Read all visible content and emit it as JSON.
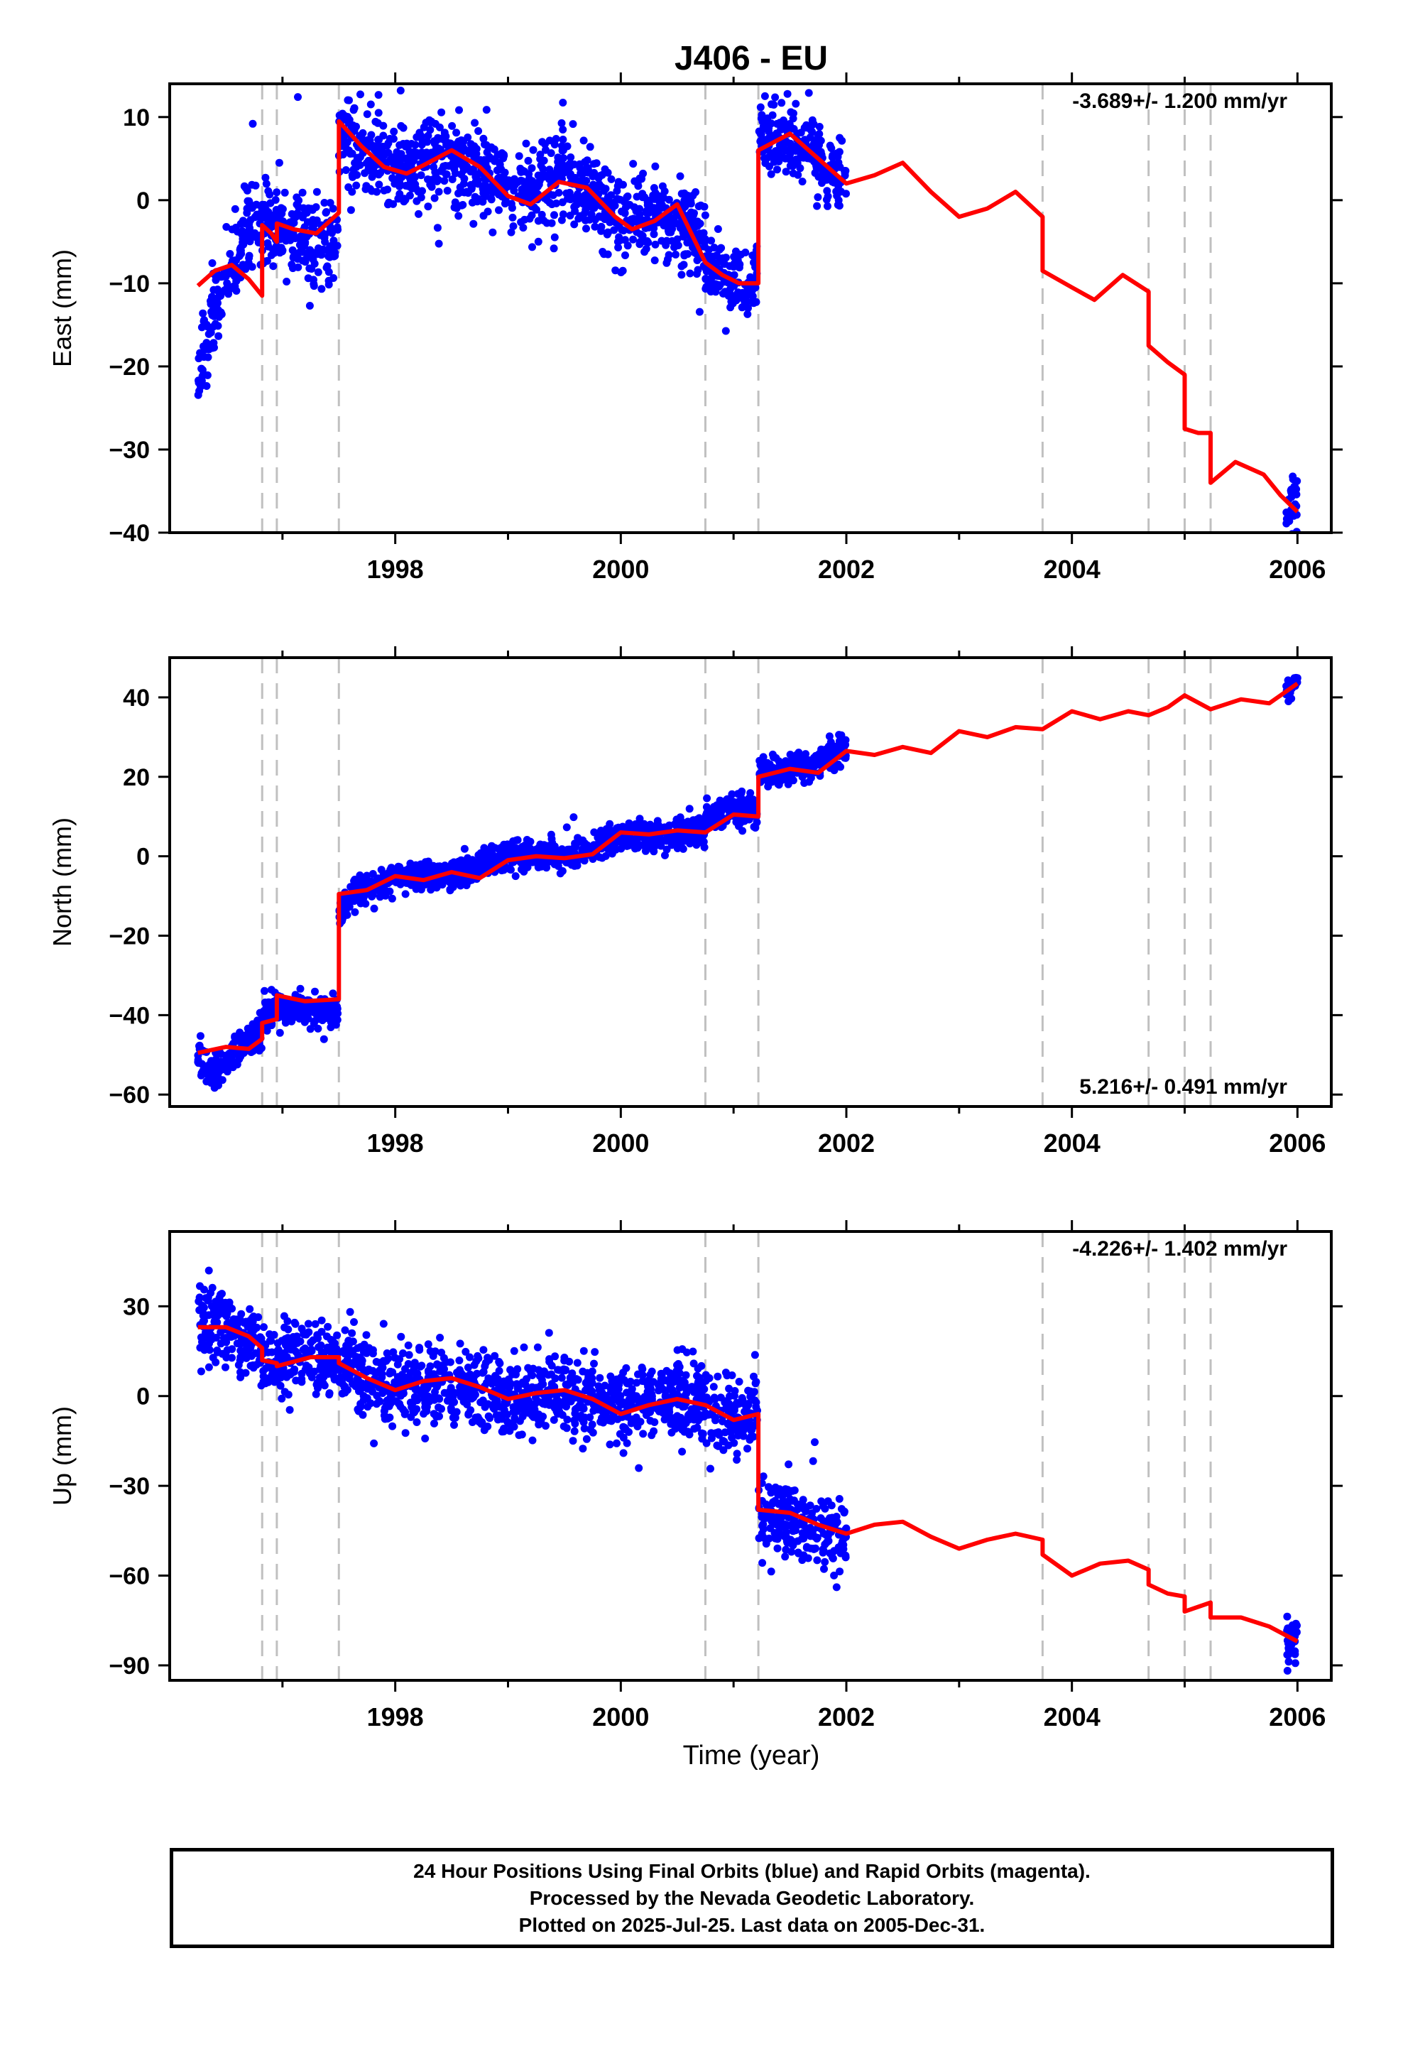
{
  "title": "J406 - EU",
  "xlabel": "Time (year)",
  "x_tick_labels": [
    "1998",
    "2000",
    "2002",
    "2004",
    "2006"
  ],
  "colors": {
    "final_orbits": "#0000ff",
    "model": "#ff0000",
    "steps": "#c0c0c0",
    "axes": "#000000"
  },
  "footer": {
    "line1": "24 Hour Positions Using Final Orbits (blue) and Rapid Orbits (magenta).",
    "line2": "Processed by the Nevada Geodetic Laboratory.",
    "line3": "Plotted on 2025-Jul-25. Last data on 2005-Dec-31."
  },
  "chart_data": [
    {
      "type": "scatter",
      "title": "J406 - EU",
      "xlabel": "",
      "ylabel": "East (mm)",
      "xlim": [
        1996.0,
        2006.3
      ],
      "ylim": [
        -40,
        14
      ],
      "xticks": [
        1998,
        2000,
        2002,
        2004,
        2006
      ],
      "yticks": [
        -40,
        -30,
        -20,
        -10,
        0,
        10
      ],
      "ytick_labels": [
        "−40",
        "−30",
        "−20",
        "−10",
        "0",
        "10"
      ],
      "rate_label": "-3.689+/- 1.200 mm/yr",
      "rate_position": "top-right",
      "step_lines": [
        1996.82,
        1996.95,
        1997.5,
        2000.75,
        2001.22,
        2003.74,
        2004.68,
        2005.0,
        2005.23
      ],
      "model": {
        "name": "model fit",
        "x": [
          1996.25,
          1996.4,
          1996.55,
          1996.7,
          1996.82,
          1996.82,
          1996.9,
          1996.95,
          1996.95,
          1997.1,
          1997.3,
          1997.5,
          1997.5,
          1997.7,
          1997.9,
          1998.1,
          1998.25,
          1998.5,
          1998.75,
          1999.0,
          1999.2,
          1999.45,
          1999.7,
          1999.95,
          2000.1,
          2000.3,
          2000.5,
          2000.75,
          2000.75,
          2000.9,
          2001.05,
          2001.22,
          2001.22,
          2001.5,
          2001.75,
          2002.0,
          2002.25,
          2002.5,
          2002.75,
          2003.0,
          2003.25,
          2003.5,
          2003.74,
          2003.74,
          2004.0,
          2004.2,
          2004.45,
          2004.68,
          2004.68,
          2004.85,
          2005.0,
          2005.0,
          2005.12,
          2005.23,
          2005.23,
          2005.45,
          2005.7,
          2005.85,
          2006.0
        ],
        "y": [
          -10.3,
          -8.5,
          -7.8,
          -9.5,
          -11.5,
          -3.0,
          -4.0,
          -5.0,
          -2.8,
          -3.5,
          -4.0,
          -1.5,
          9.5,
          6.5,
          4.0,
          3.2,
          4.2,
          6.0,
          4.0,
          0.5,
          -0.5,
          2.2,
          1.5,
          -2.0,
          -3.5,
          -2.5,
          -0.5,
          -7.5,
          -7.5,
          -9.0,
          -10.0,
          -10.0,
          6.0,
          8.0,
          5.0,
          2.0,
          3.0,
          4.5,
          1.0,
          -2.0,
          -1.0,
          1.0,
          -2.0,
          -8.5,
          -10.5,
          -12.0,
          -9.0,
          -11.0,
          -17.5,
          -19.5,
          -21.0,
          -27.5,
          -28.0,
          -28.0,
          -34.0,
          -31.5,
          -33.0,
          -35.5,
          -37.5
        ]
      },
      "observed_segments": [
        {
          "x": [
            1996.25,
            1996.4,
            1996.55,
            1996.7,
            1996.82
          ],
          "y": [
            -21,
            -13,
            -8,
            -3,
            -2
          ],
          "spread": 2.5
        },
        {
          "x": [
            1996.82,
            1997.1,
            1997.49
          ],
          "y": [
            -3,
            -4,
            -5
          ],
          "spread": 2.5
        },
        {
          "x": [
            1997.5,
            1997.75,
            1998.0,
            1998.5,
            1999.0,
            1999.5,
            2000.0,
            2000.4,
            2000.75
          ],
          "y": [
            8,
            6,
            4,
            5,
            1,
            3,
            -2,
            -2,
            -5
          ],
          "spread": 2.5
        },
        {
          "x": [
            2000.75,
            2001.0,
            2001.21
          ],
          "y": [
            -8,
            -10,
            -10
          ],
          "spread": 2.0
        },
        {
          "x": [
            2001.22,
            2001.5,
            2001.75,
            2002.0
          ],
          "y": [
            8,
            8,
            5,
            1
          ],
          "spread": 2.2
        },
        {
          "x": [
            2005.9,
            2006.0
          ],
          "y": [
            -37,
            -35
          ],
          "spread": 1.8
        }
      ]
    },
    {
      "type": "scatter",
      "xlabel": "",
      "ylabel": "North (mm)",
      "xlim": [
        1996.0,
        2006.3
      ],
      "ylim": [
        -63,
        50
      ],
      "xticks": [
        1998,
        2000,
        2002,
        2004,
        2006
      ],
      "yticks": [
        -60,
        -40,
        -20,
        0,
        20,
        40
      ],
      "ytick_labels": [
        "−60",
        "−40",
        "−20",
        "0",
        "20",
        "40"
      ],
      "rate_label": "5.216+/- 0.491 mm/yr",
      "rate_position": "bottom-right",
      "step_lines": [
        1996.82,
        1996.95,
        1997.5,
        2000.75,
        2001.22,
        2003.74,
        2004.68,
        2005.0,
        2005.23
      ],
      "model": {
        "name": "model fit",
        "x": [
          1996.25,
          1996.5,
          1996.7,
          1996.82,
          1996.82,
          1996.95,
          1996.95,
          1997.2,
          1997.5,
          1997.5,
          1997.75,
          1998.0,
          1998.25,
          1998.5,
          1998.75,
          1999.0,
          1999.25,
          1999.5,
          1999.75,
          2000.0,
          2000.25,
          2000.5,
          2000.75,
          2000.75,
          2001.0,
          2001.22,
          2001.22,
          2001.5,
          2001.75,
          2002.0,
          2002.25,
          2002.5,
          2002.75,
          2003.0,
          2003.25,
          2003.5,
          2003.74,
          2003.74,
          2004.0,
          2004.25,
          2004.5,
          2004.68,
          2004.68,
          2004.85,
          2005.0,
          2005.0,
          2005.23,
          2005.23,
          2005.5,
          2005.75,
          2006.0
        ],
        "y": [
          -49.5,
          -48.0,
          -48.5,
          -46.0,
          -42.0,
          -41.0,
          -35.0,
          -36.5,
          -36.0,
          -9.5,
          -8.5,
          -5.0,
          -6.0,
          -4.0,
          -5.5,
          -1.0,
          0.0,
          -0.5,
          0.5,
          6.0,
          5.5,
          6.5,
          6.0,
          6.0,
          10.5,
          10.0,
          20.0,
          22.0,
          21.0,
          26.5,
          25.5,
          27.5,
          26.0,
          31.5,
          30.0,
          32.5,
          32.0,
          32.0,
          36.5,
          34.5,
          36.5,
          35.5,
          35.5,
          37.5,
          40.5,
          40.5,
          37.0,
          37.0,
          39.5,
          38.5,
          43.5
        ]
      },
      "observed_segments": [
        {
          "x": [
            1996.25,
            1996.4,
            1996.55,
            1996.7,
            1996.82
          ],
          "y": [
            -50,
            -55,
            -50,
            -46,
            -45
          ],
          "spread": 2.2
        },
        {
          "x": [
            1996.82,
            1997.1,
            1997.49
          ],
          "y": [
            -40,
            -38,
            -40
          ],
          "spread": 2.0
        },
        {
          "x": [
            1997.5,
            1997.6,
            1997.75,
            1998.0,
            1998.5,
            1999.0,
            1999.5,
            2000.0,
            2000.5,
            2000.75
          ],
          "y": [
            -15,
            -10,
            -8,
            -5,
            -5,
            0,
            0,
            5,
            6,
            6
          ],
          "spread": 1.8
        },
        {
          "x": [
            2000.75,
            2001.0,
            2001.21
          ],
          "y": [
            10,
            12,
            11
          ],
          "spread": 1.8
        },
        {
          "x": [
            2001.22,
            2001.5,
            2001.75,
            2002.0
          ],
          "y": [
            21,
            22,
            24,
            27
          ],
          "spread": 1.8
        },
        {
          "x": [
            2005.9,
            2006.0
          ],
          "y": [
            42,
            44
          ],
          "spread": 1.5
        }
      ]
    },
    {
      "type": "scatter",
      "xlabel": "Time (year)",
      "ylabel": "Up (mm)",
      "xlim": [
        1996.0,
        2006.3
      ],
      "ylim": [
        -95,
        55
      ],
      "xticks": [
        1998,
        2000,
        2002,
        2004,
        2006
      ],
      "yticks": [
        -90,
        -60,
        -30,
        0,
        30
      ],
      "ytick_labels": [
        "−90",
        "−60",
        "−30",
        "0",
        "30"
      ],
      "rate_label": "-4.226+/- 1.402 mm/yr",
      "rate_position": "top-right",
      "step_lines": [
        1996.82,
        1996.95,
        1997.5,
        2000.75,
        2001.22,
        2003.74,
        2004.68,
        2005.0,
        2005.23
      ],
      "model": {
        "name": "model fit",
        "x": [
          1996.25,
          1996.5,
          1996.7,
          1996.82,
          1996.82,
          1996.95,
          1996.95,
          1997.25,
          1997.5,
          1997.5,
          1997.75,
          1998.0,
          1998.25,
          1998.5,
          1998.75,
          1999.0,
          1999.25,
          1999.5,
          1999.75,
          2000.0,
          2000.25,
          2000.5,
          2000.75,
          2001.0,
          2001.22,
          2001.22,
          2001.5,
          2001.75,
          2002.0,
          2002.25,
          2002.5,
          2002.75,
          2003.0,
          2003.25,
          2003.5,
          2003.74,
          2003.74,
          2004.0,
          2004.25,
          2004.5,
          2004.68,
          2004.68,
          2004.85,
          2005.0,
          2005.0,
          2005.23,
          2005.23,
          2005.5,
          2005.75,
          2006.0
        ],
        "y": [
          23.0,
          23.0,
          20.0,
          16.0,
          12.0,
          11.0,
          10.0,
          13.0,
          13.0,
          11.0,
          6.0,
          2.0,
          5.0,
          6.0,
          3.0,
          -1.0,
          1.0,
          2.0,
          -1.0,
          -6.0,
          -3.0,
          -1.0,
          -3.0,
          -8.0,
          -6.0,
          -38.0,
          -39.0,
          -43.0,
          -46.0,
          -43.0,
          -42.0,
          -47.0,
          -51.0,
          -48.0,
          -46.0,
          -48.0,
          -53.0,
          -60.0,
          -56.0,
          -55.0,
          -58.0,
          -63.0,
          -66.0,
          -67.0,
          -72.0,
          -69.0,
          -74.0,
          -74.0,
          -77.0,
          -82.0
        ]
      },
      "observed_segments": [
        {
          "x": [
            1996.25,
            1996.5,
            1996.7,
            1996.82
          ],
          "y": [
            25,
            24,
            20,
            15
          ],
          "spread": 6.5
        },
        {
          "x": [
            1996.82,
            1997.1,
            1997.49
          ],
          "y": [
            12,
            12,
            13
          ],
          "spread": 6.5
        },
        {
          "x": [
            1997.5,
            1998.0,
            1998.5,
            1999.0,
            1999.5,
            2000.0,
            2000.5,
            2000.75
          ],
          "y": [
            10,
            4,
            4,
            0,
            1,
            -3,
            -1,
            -3
          ],
          "spread": 6.5
        },
        {
          "x": [
            2000.75,
            2001.0,
            2001.21
          ],
          "y": [
            -4,
            -7,
            -6
          ],
          "spread": 6.0
        },
        {
          "x": [
            2001.22,
            2001.5,
            2001.75,
            2002.0
          ],
          "y": [
            -40,
            -42,
            -46,
            -45
          ],
          "spread": 6.0
        },
        {
          "x": [
            2005.9,
            2006.0
          ],
          "y": [
            -82,
            -80
          ],
          "spread": 5.0
        }
      ]
    }
  ]
}
